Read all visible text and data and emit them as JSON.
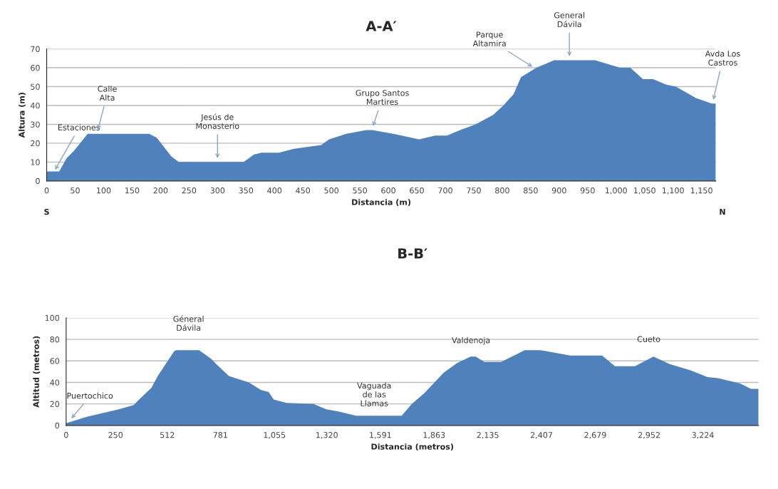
{
  "chart_data": [
    {
      "type": "area",
      "title": "A-A′",
      "xlabel": "Distancia (m)",
      "ylabel": "Altura (m)",
      "color": "#4f81bd",
      "x": [
        0,
        22,
        35,
        48,
        72,
        180,
        193,
        219,
        232,
        346,
        364,
        377,
        408,
        434,
        482,
        496,
        526,
        562,
        572,
        609,
        654,
        682,
        703,
        726,
        753,
        784,
        802,
        820,
        833,
        860,
        891,
        963,
        1007,
        1025,
        1047,
        1065,
        1088,
        1105,
        1140,
        1168,
        1175
      ],
      "values": [
        5,
        5,
        12,
        16,
        25,
        25,
        23,
        13,
        10,
        10,
        14,
        15,
        15,
        17,
        19,
        22,
        25,
        27,
        27,
        25,
        22,
        24,
        24,
        27,
        30,
        35,
        40,
        46,
        55,
        60,
        64,
        64,
        60,
        60,
        54,
        54,
        51,
        50,
        44,
        41,
        41
      ],
      "xlim": [
        0,
        1175
      ],
      "ylim": [
        0,
        70
      ],
      "xticks": [
        0,
        50,
        100,
        150,
        200,
        250,
        300,
        350,
        400,
        450,
        500,
        550,
        600,
        650,
        700,
        750,
        800,
        850,
        900,
        950,
        {
          "value": 1000,
          "label": "1,000"
        },
        {
          "value": 1050,
          "label": "1,050"
        },
        {
          "value": 1100,
          "label": "1,100"
        },
        {
          "value": 1150,
          "label": "1,150"
        }
      ],
      "yticks": [
        0,
        10,
        20,
        30,
        40,
        50,
        60,
        70
      ],
      "grid": "y",
      "annotations": [
        {
          "text": "Estaciones",
          "x": 13,
          "y": 5
        },
        {
          "text": "Calle\nAlta",
          "x": 89,
          "y": 26
        },
        {
          "text": "Jesús de\nMonasterio",
          "x": 300,
          "y": 11
        },
        {
          "text": "Grupo Santos\nMartires",
          "x": 572,
          "y": 28
        },
        {
          "text": "Parque\nAltamira",
          "x": 856,
          "y": 60
        },
        {
          "text": "General\nDávila",
          "x": 918,
          "y": 65
        },
        {
          "text": "Avda Los\nCastros",
          "x": 1170,
          "y": 42
        },
        "S",
        "N"
      ]
    },
    {
      "type": "area",
      "title": "B-B′",
      "xlabel": "Distancia (metros)",
      "ylabel": "Altitud (metros)",
      "color": "#4f81bd",
      "x": [
        0,
        104,
        266,
        342,
        364,
        432,
        464,
        547,
        558,
        673,
        734,
        760,
        824,
        925,
        986,
        1026,
        1051,
        1116,
        1253,
        1318,
        1379,
        1469,
        1699,
        1750,
        1814,
        1912,
        1980,
        2048,
        2074,
        2117,
        2203,
        2322,
        2401,
        2552,
        2714,
        2779,
        2880,
        2974,
        3056,
        3164,
        3247,
        3301,
        3413,
        3467,
        3506
      ],
      "values": [
        2,
        8,
        15,
        19,
        23,
        35,
        46,
        69,
        70,
        70,
        62,
        57,
        46,
        40,
        33,
        31,
        24,
        21,
        20,
        15,
        13,
        9,
        9,
        20,
        30,
        49,
        58,
        64,
        64,
        59,
        59,
        70,
        70,
        65,
        65,
        55,
        55,
        64,
        57,
        51,
        45,
        44,
        39,
        34,
        34
      ],
      "xlim": [
        0,
        3506
      ],
      "ylim": [
        0,
        100
      ],
      "xticks": [
        0,
        250,
        512,
        781,
        {
          "value": 1055,
          "label": "1,055"
        },
        {
          "value": 1320,
          "label": "1,320"
        },
        {
          "value": 1591,
          "label": "1,591"
        },
        {
          "value": 1863,
          "label": "1,863"
        },
        {
          "value": 2135,
          "label": "2,135"
        },
        {
          "value": 2407,
          "label": "2,407"
        },
        {
          "value": 2679,
          "label": "2,679"
        },
        {
          "value": 2952,
          "label": "2,952"
        },
        {
          "value": 3224,
          "label": "3,224"
        }
      ],
      "yticks": [
        0,
        20,
        40,
        60,
        80,
        100
      ],
      "grid": "y",
      "annotations": [
        {
          "text": "Puertochico",
          "x": 20,
          "y": 5
        },
        {
          "text": "Géneral\nDávila",
          "x": 620,
          "y": 70
        },
        {
          "text": "Vaguada\nde las\nLlamas",
          "x": 1560,
          "y": 9
        },
        {
          "text": "Valdenoja",
          "x": 2050,
          "y": 64
        },
        {
          "text": "Cueto",
          "x": 2950,
          "y": 65
        }
      ]
    }
  ]
}
